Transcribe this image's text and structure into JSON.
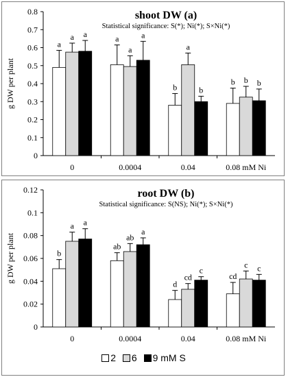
{
  "chart_data": [
    {
      "type": "bar",
      "title": "shoot DW (a)",
      "subtitle": "Statistical significance: S(*); Ni(*); S×Ni(*)",
      "ylabel": "g DW per plant",
      "categories": [
        "0",
        "0.0004",
        "0.04",
        "0.08 mM Ni"
      ],
      "ylim": [
        0,
        0.8
      ],
      "yticks": [
        0,
        0.1,
        0.2,
        0.3,
        0.4,
        0.5,
        0.6,
        0.7,
        0.8
      ],
      "ytick_labels": [
        "0",
        "0.1",
        "0.2",
        "0.3",
        "0.4",
        "0.5",
        "0.6",
        "0.7",
        "0.8"
      ],
      "series": [
        {
          "name": "2",
          "color": "#ffffff",
          "values": [
            0.49,
            0.505,
            0.28,
            0.29
          ],
          "errors": [
            0.095,
            0.11,
            0.065,
            0.085
          ],
          "letters": [
            "a",
            "a",
            "b",
            "b"
          ]
        },
        {
          "name": "6",
          "color": "#d9d9d9",
          "values": [
            0.575,
            0.495,
            0.505,
            0.325
          ],
          "errors": [
            0.05,
            0.06,
            0.065,
            0.06
          ],
          "letters": [
            "a",
            "a",
            "a",
            "b"
          ]
        },
        {
          "name": "9 mM S",
          "color": "#000000",
          "values": [
            0.58,
            0.53,
            0.3,
            0.305
          ],
          "errors": [
            0.06,
            0.105,
            0.03,
            0.065
          ],
          "letters": [
            "a",
            "a",
            "b",
            "b"
          ]
        }
      ]
    },
    {
      "type": "bar",
      "title": "root DW (b)",
      "subtitle": "Statistical significance: S(NS); Ni(*); S×Ni(*)",
      "ylabel": "g DW per plant",
      "categories": [
        "0",
        "0.0004",
        "0.04",
        "0.08 mM Ni"
      ],
      "ylim": [
        0,
        0.12
      ],
      "yticks": [
        0,
        0.02,
        0.04,
        0.06,
        0.08,
        0.1,
        0.12
      ],
      "ytick_labels": [
        "0",
        "0.02",
        "0.04",
        "0.06",
        "0.08",
        "0.1",
        "0.12"
      ],
      "series": [
        {
          "name": "2",
          "color": "#ffffff",
          "values": [
            0.051,
            0.058,
            0.024,
            0.029
          ],
          "errors": [
            0.008,
            0.007,
            0.008,
            0.01
          ],
          "letters": [
            "b",
            "ab",
            "d",
            "cd"
          ]
        },
        {
          "name": "6",
          "color": "#d9d9d9",
          "values": [
            0.075,
            0.066,
            0.033,
            0.042
          ],
          "errors": [
            0.008,
            0.007,
            0.005,
            0.007
          ],
          "letters": [
            "a",
            "ab",
            "cd",
            "c"
          ]
        },
        {
          "name": "9 mM S",
          "color": "#000000",
          "values": [
            0.077,
            0.072,
            0.041,
            0.041
          ],
          "errors": [
            0.009,
            0.006,
            0.003,
            0.005
          ],
          "letters": [
            "a",
            "a",
            "c",
            "c"
          ]
        }
      ]
    }
  ],
  "legend": {
    "items": [
      {
        "label": "2",
        "color": "#ffffff"
      },
      {
        "label": "6",
        "color": "#d9d9d9"
      },
      {
        "label": "9 mM S",
        "color": "#000000"
      }
    ]
  }
}
